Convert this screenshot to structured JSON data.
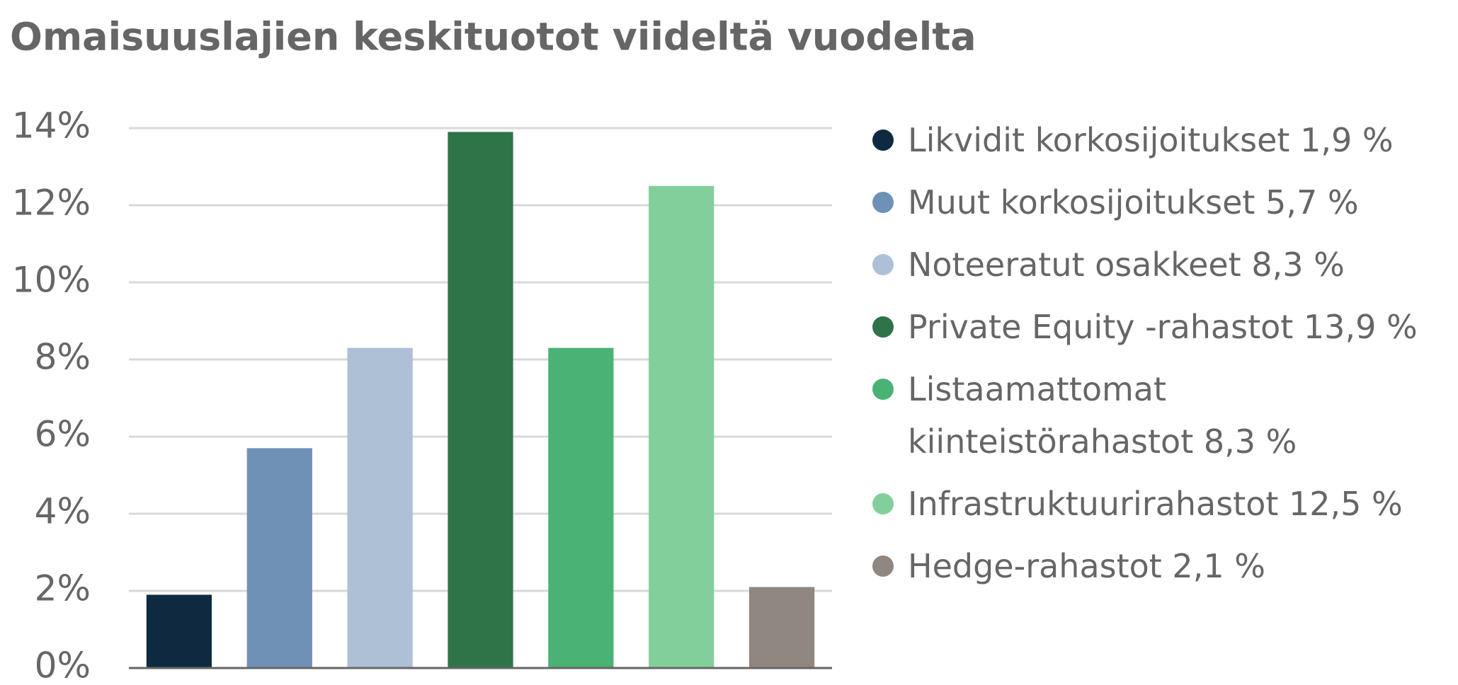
{
  "chart_data": {
    "type": "bar",
    "title": "Omaisuuslajien keskituotot viideltä vuodelta",
    "categories": [
      "Likvidit korkosijoitukset 1,9 %",
      "Muut korkosijoitukset 5,7 %",
      "Noteeratut osakkeet 8,3 %",
      "Private Equity -rahastot 13,9 %",
      "Listaamattomat kiinteistörahastot 8,3 %",
      "Infrastruktuurirahastot 12,5 %",
      "Hedge-rahastot 2,1 %"
    ],
    "values": [
      1.9,
      5.7,
      8.3,
      13.9,
      8.3,
      12.5,
      2.1
    ],
    "colors": [
      "#0f2a40",
      "#6f91b5",
      "#adc0d6",
      "#2f7348",
      "#4ab274",
      "#83cf9b",
      "#8f8780"
    ],
    "ylim": [
      0,
      14
    ],
    "yticks": [
      {
        "value": 0,
        "label": "0%"
      },
      {
        "value": 2,
        "label": "2%"
      },
      {
        "value": 4,
        "label": "4%"
      },
      {
        "value": 6,
        "label": "6%"
      },
      {
        "value": 8,
        "label": "8%"
      },
      {
        "value": 10,
        "label": "10%"
      },
      {
        "value": 12,
        "label": "12%"
      },
      {
        "value": 14,
        "label": "14%"
      }
    ],
    "grid": true,
    "legend": "right"
  }
}
